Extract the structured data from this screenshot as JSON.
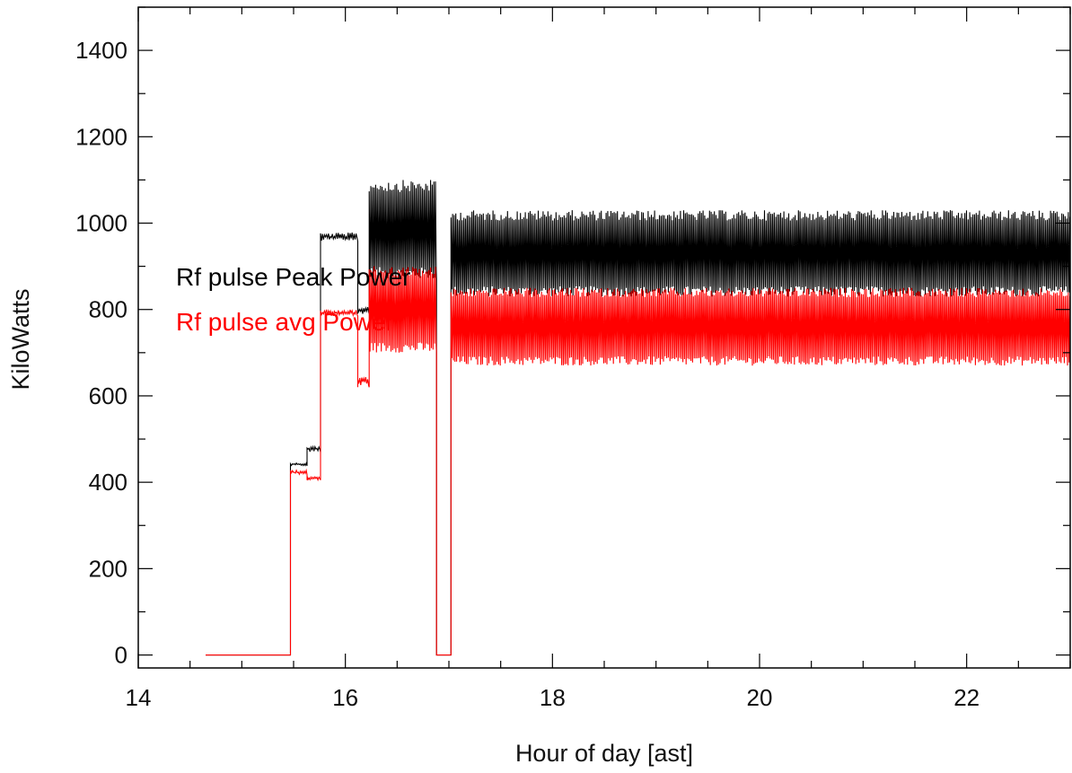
{
  "chart_data": {
    "type": "line",
    "xlabel": "Hour of day [ast]",
    "ylabel": "KiloWatts",
    "xlim": [
      14,
      23
    ],
    "ylim": [
      -30,
      1500
    ],
    "x_ticks": [
      14,
      16,
      18,
      20,
      22
    ],
    "x_tick_labels": [
      "14",
      "16",
      "18",
      "20",
      "22"
    ],
    "y_ticks": [
      0,
      200,
      400,
      600,
      800,
      1000,
      1200,
      1400
    ],
    "y_tick_labels": [
      "0",
      "200",
      "400",
      "600",
      "800",
      "1000",
      "1200",
      "1400"
    ],
    "grid": false,
    "legend_position": "left-middle",
    "series": [
      {
        "name": "Rf pulse Peak Power",
        "color": "#000000",
        "segments": [
          {
            "x_start": 14.65,
            "x_end": 15.47,
            "low": 0,
            "high": 0
          },
          {
            "x_start": 15.47,
            "x_end": 15.63,
            "low": 438,
            "high": 445
          },
          {
            "x_start": 15.63,
            "x_end": 15.76,
            "low": 470,
            "high": 485
          },
          {
            "x_start": 15.76,
            "x_end": 16.12,
            "low": 958,
            "high": 978
          },
          {
            "x_start": 16.12,
            "x_end": 16.23,
            "low": 790,
            "high": 808
          },
          {
            "x_start": 16.23,
            "x_end": 16.88,
            "low": 870,
            "high": 1100
          },
          {
            "x_start": 16.88,
            "x_end": 17.02,
            "low": 0,
            "high": 0
          },
          {
            "x_start": 17.02,
            "x_end": 23.0,
            "low": 830,
            "high": 1030
          }
        ]
      },
      {
        "name": "Rf pulse  avg Power",
        "color": "#ff0000",
        "segments": [
          {
            "x_start": 14.65,
            "x_end": 15.47,
            "low": 0,
            "high": 0
          },
          {
            "x_start": 15.47,
            "x_end": 15.63,
            "low": 418,
            "high": 428
          },
          {
            "x_start": 15.63,
            "x_end": 15.76,
            "low": 405,
            "high": 415
          },
          {
            "x_start": 15.76,
            "x_end": 16.12,
            "low": 785,
            "high": 800
          },
          {
            "x_start": 16.12,
            "x_end": 16.23,
            "low": 620,
            "high": 650
          },
          {
            "x_start": 16.23,
            "x_end": 16.88,
            "low": 700,
            "high": 900
          },
          {
            "x_start": 16.88,
            "x_end": 17.02,
            "low": 0,
            "high": 0
          },
          {
            "x_start": 17.02,
            "x_end": 23.0,
            "low": 670,
            "high": 850
          }
        ]
      }
    ]
  }
}
